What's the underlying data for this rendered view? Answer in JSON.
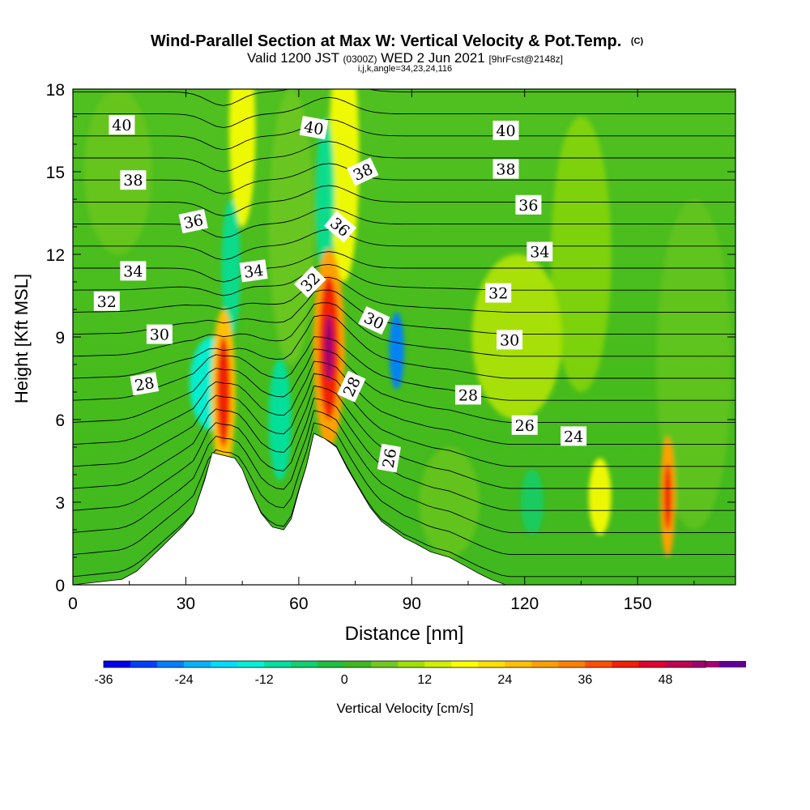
{
  "chart_data": {
    "type": "heatmap",
    "title": "Wind-Parallel Section at Max W: Vertical Velocity & Pot.Temp.",
    "title_mark": "(C)",
    "subtitle_parts": [
      "Valid 1200 JST",
      "(0300Z)",
      "WED 2 Jun 2021",
      "[9hrFcst@2148z]"
    ],
    "subsubtitle": "i,j,k,angle=34,23,24,116",
    "xlabel": "Distance [nm]",
    "ylabel": "Height [Kft MSL]",
    "xlim": [
      0,
      176
    ],
    "ylim": [
      0,
      18
    ],
    "xticks": [
      "0",
      "30",
      "60",
      "90",
      "120",
      "150"
    ],
    "yticks": [
      "0",
      "3",
      "6",
      "9",
      "12",
      "15",
      "18"
    ],
    "colorbar": {
      "label": "Vertical Velocity [cm/s]",
      "range": [
        -36,
        54
      ],
      "step": 4,
      "tick_labels": [
        "-36",
        "-24",
        "-12",
        "0",
        "12",
        "24",
        "36",
        "48"
      ],
      "colors": [
        "#0000f0",
        "#0040ff",
        "#0080ff",
        "#00b4ff",
        "#00dcff",
        "#00f0d8",
        "#00e0a0",
        "#10d070",
        "#20c040",
        "#40b820",
        "#70c820",
        "#a0e000",
        "#d0f000",
        "#ffff00",
        "#ffe000",
        "#ffc000",
        "#ffa000",
        "#ff8000",
        "#ff5000",
        "#f02000",
        "#e00030",
        "#c00050",
        "#a00070",
        "#600090"
      ]
    },
    "terrain_kft": [
      [
        0,
        0
      ],
      [
        13,
        0.2
      ],
      [
        17,
        0.5
      ],
      [
        20,
        0.9
      ],
      [
        23,
        1.3
      ],
      [
        26,
        1.7
      ],
      [
        29,
        2.1
      ],
      [
        32,
        2.6
      ],
      [
        35,
        3.8
      ],
      [
        37,
        4.8
      ],
      [
        43,
        4.6
      ],
      [
        45,
        4.2
      ],
      [
        47,
        3.5
      ],
      [
        50,
        2.6
      ],
      [
        53,
        2.1
      ],
      [
        56,
        2.0
      ],
      [
        58,
        2.4
      ],
      [
        60,
        3.4
      ],
      [
        62,
        4.3
      ],
      [
        64,
        5.5
      ],
      [
        67,
        5.3
      ],
      [
        70,
        5.0
      ],
      [
        73,
        4.2
      ],
      [
        76,
        3.5
      ],
      [
        79,
        2.8
      ],
      [
        82,
        2.3
      ],
      [
        85,
        2.0
      ],
      [
        88,
        1.7
      ],
      [
        91,
        1.5
      ],
      [
        95,
        1.2
      ],
      [
        100,
        1.0
      ],
      [
        104,
        0.7
      ],
      [
        108,
        0.4
      ],
      [
        111,
        0.2
      ],
      [
        115,
        0
      ]
    ],
    "theta_labels": [
      {
        "text": "40",
        "x": 13,
        "y": 16.7,
        "rot": 0
      },
      {
        "text": "40",
        "x": 64,
        "y": 16.6,
        "rot": 10
      },
      {
        "text": "40",
        "x": 115,
        "y": 16.5,
        "rot": 0
      },
      {
        "text": "38",
        "x": 16,
        "y": 14.7,
        "rot": 0
      },
      {
        "text": "38",
        "x": 77,
        "y": 15.0,
        "rot": -25
      },
      {
        "text": "38",
        "x": 115,
        "y": 15.1,
        "rot": 0
      },
      {
        "text": "36",
        "x": 32,
        "y": 13.2,
        "rot": -12
      },
      {
        "text": "36",
        "x": 71,
        "y": 13.0,
        "rot": 40
      },
      {
        "text": "36",
        "x": 121,
        "y": 13.8,
        "rot": 0
      },
      {
        "text": "34",
        "x": 16,
        "y": 11.4,
        "rot": 0
      },
      {
        "text": "34",
        "x": 48,
        "y": 11.4,
        "rot": -8
      },
      {
        "text": "34",
        "x": 124,
        "y": 12.1,
        "rot": 0
      },
      {
        "text": "32",
        "x": 9,
        "y": 10.3,
        "rot": 0
      },
      {
        "text": "32",
        "x": 63,
        "y": 11.0,
        "rot": -45
      },
      {
        "text": "32",
        "x": 113,
        "y": 10.6,
        "rot": 0
      },
      {
        "text": "30",
        "x": 23,
        "y": 9.1,
        "rot": 0
      },
      {
        "text": "30",
        "x": 80,
        "y": 9.6,
        "rot": 25
      },
      {
        "text": "30",
        "x": 116,
        "y": 8.9,
        "rot": 0
      },
      {
        "text": "28",
        "x": 19,
        "y": 7.3,
        "rot": -10
      },
      {
        "text": "28",
        "x": 74,
        "y": 7.2,
        "rot": -65
      },
      {
        "text": "28",
        "x": 105,
        "y": 6.9,
        "rot": 0
      },
      {
        "text": "26",
        "x": 84,
        "y": 4.6,
        "rot": -80
      },
      {
        "text": "26",
        "x": 120,
        "y": 5.8,
        "rot": 0
      },
      {
        "text": "24",
        "x": 133,
        "y": 5.4,
        "rot": 0
      }
    ],
    "grid": false,
    "legend": "colorbar-bottom"
  }
}
